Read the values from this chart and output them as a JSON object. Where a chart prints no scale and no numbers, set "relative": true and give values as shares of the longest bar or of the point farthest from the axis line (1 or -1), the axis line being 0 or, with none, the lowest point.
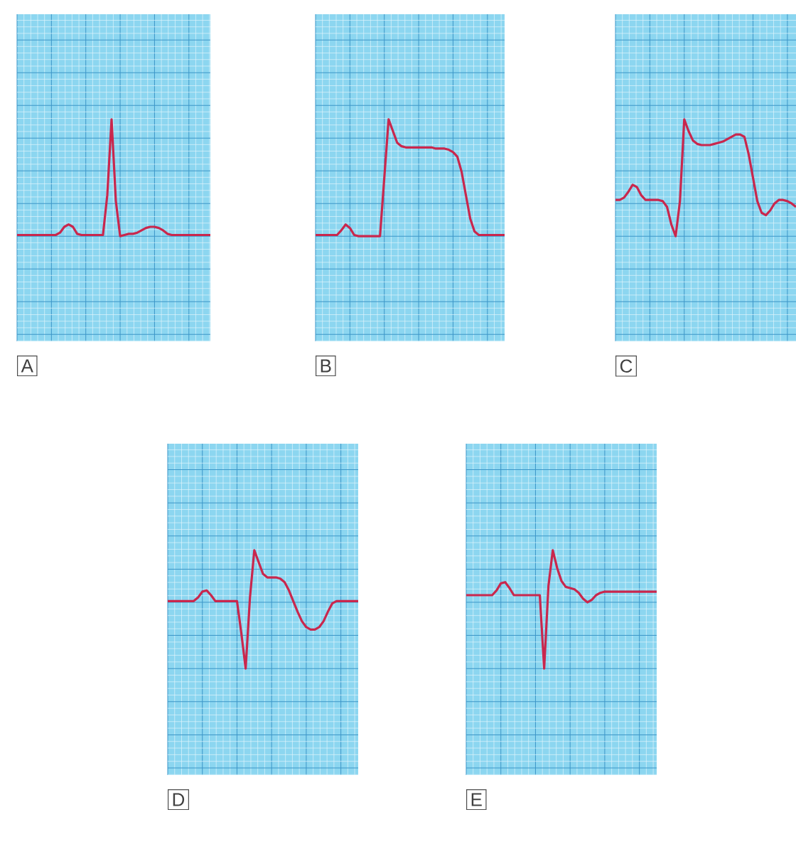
{
  "chart_data": [
    {
      "type": "line",
      "title": "A",
      "relative": true,
      "grid": true,
      "tick_labels": false,
      "color": "#c9274d",
      "categories": [
        null,
        null,
        null,
        null,
        null,
        null,
        null,
        null,
        null,
        null,
        null,
        null,
        null,
        null,
        null,
        null,
        null,
        null,
        null,
        null,
        null,
        null,
        null,
        null,
        null,
        null,
        null,
        null,
        null,
        null,
        null,
        null,
        null,
        null,
        null,
        null,
        null,
        null,
        null,
        null,
        null,
        null,
        null,
        null,
        null,
        null
      ],
      "values": [
        0.01,
        0.01,
        0.01,
        0.01,
        0.01,
        0.01,
        0.01,
        0.01,
        0.01,
        0.01,
        0.03,
        0.08,
        0.1,
        0.08,
        0.02,
        0.01,
        0.01,
        0.01,
        0.01,
        0.01,
        0.01,
        0.35,
        1,
        0.3,
        0,
        0.01,
        0.02,
        0.02,
        0.03,
        0.05,
        0.07,
        0.08,
        0.08,
        0.07,
        0.05,
        0.02,
        0.01,
        0.01,
        0.01,
        0.01,
        0.01,
        0.01,
        0.01,
        0.01,
        0.01,
        0.01
      ]
    },
    {
      "type": "line",
      "title": "B",
      "relative": true,
      "grid": true,
      "tick_labels": false,
      "color": "#c9274d",
      "categories": [
        null,
        null,
        null,
        null,
        null,
        null,
        null,
        null,
        null,
        null,
        null,
        null,
        null,
        null,
        null,
        null,
        null,
        null,
        null,
        null,
        null,
        null,
        null,
        null,
        null,
        null,
        null,
        null,
        null,
        null,
        null,
        null,
        null,
        null,
        null,
        null,
        null,
        null,
        null,
        null,
        null,
        null,
        null,
        null,
        null
      ],
      "values": [
        0.01,
        0.01,
        0.01,
        0.01,
        0.01,
        0.01,
        0.05,
        0.1,
        0.07,
        0.01,
        0,
        0,
        0,
        0,
        0,
        0,
        0.5,
        1,
        0.9,
        0.8,
        0.77,
        0.76,
        0.76,
        0.76,
        0.76,
        0.76,
        0.76,
        0.76,
        0.75,
        0.75,
        0.75,
        0.74,
        0.72,
        0.68,
        0.55,
        0.35,
        0.15,
        0.04,
        0.01,
        0.01,
        0.01,
        0.01,
        0.01,
        0.01,
        0.01
      ]
    },
    {
      "type": "line",
      "title": "C",
      "relative": true,
      "grid": true,
      "tick_labels": false,
      "color": "#c9274d",
      "categories": [
        null,
        null,
        null,
        null,
        null,
        null,
        null,
        null,
        null,
        null,
        null,
        null,
        null,
        null,
        null,
        null,
        null,
        null,
        null,
        null,
        null,
        null,
        null,
        null,
        null,
        null,
        null,
        null,
        null,
        null,
        null,
        null,
        null,
        null,
        null,
        null,
        null,
        null,
        null,
        null,
        null,
        null,
        null
      ],
      "values": [
        0.31,
        0.31,
        0.33,
        0.38,
        0.44,
        0.42,
        0.35,
        0.31,
        0.31,
        0.31,
        0.31,
        0.3,
        0.25,
        0.1,
        0,
        0.3,
        1,
        0.9,
        0.82,
        0.79,
        0.78,
        0.78,
        0.78,
        0.79,
        0.8,
        0.81,
        0.83,
        0.85,
        0.87,
        0.87,
        0.85,
        0.7,
        0.5,
        0.3,
        0.2,
        0.18,
        0.22,
        0.28,
        0.31,
        0.31,
        0.3,
        0.28,
        0.25
      ]
    },
    {
      "type": "line",
      "title": "D",
      "relative": true,
      "grid": true,
      "tick_labels": false,
      "color": "#c9274d",
      "categories": [
        null,
        null,
        null,
        null,
        null,
        null,
        null,
        null,
        null,
        null,
        null,
        null,
        null,
        null,
        null,
        null,
        null,
        null,
        null,
        null,
        null,
        null,
        null,
        null,
        null,
        null,
        null,
        null,
        null,
        null,
        null,
        null,
        null,
        null,
        null,
        null,
        null,
        null,
        null,
        null,
        null,
        null,
        null,
        null,
        null
      ],
      "values": [
        0.57,
        0.57,
        0.57,
        0.57,
        0.57,
        0.57,
        0.57,
        0.6,
        0.65,
        0.66,
        0.62,
        0.57,
        0.57,
        0.57,
        0.57,
        0.57,
        0.57,
        0.3,
        0,
        0.6,
        1,
        0.9,
        0.8,
        0.77,
        0.77,
        0.77,
        0.76,
        0.73,
        0.66,
        0.57,
        0.48,
        0.4,
        0.35,
        0.33,
        0.33,
        0.35,
        0.4,
        0.48,
        0.55,
        0.57,
        0.57,
        0.57,
        0.57,
        0.57,
        0.57
      ]
    },
    {
      "type": "line",
      "title": "E",
      "relative": true,
      "grid": true,
      "tick_labels": false,
      "color": "#c9274d",
      "categories": [
        null,
        null,
        null,
        null,
        null,
        null,
        null,
        null,
        null,
        null,
        null,
        null,
        null,
        null,
        null,
        null,
        null,
        null,
        null,
        null,
        null,
        null,
        null,
        null,
        null,
        null,
        null,
        null,
        null,
        null,
        null,
        null,
        null,
        null,
        null,
        null,
        null,
        null,
        null,
        null,
        null,
        null,
        null,
        null,
        null
      ],
      "values": [
        0.62,
        0.62,
        0.62,
        0.62,
        0.62,
        0.62,
        0.62,
        0.66,
        0.72,
        0.73,
        0.68,
        0.62,
        0.62,
        0.62,
        0.62,
        0.62,
        0.62,
        0.62,
        0,
        0.7,
        1,
        0.85,
        0.74,
        0.69,
        0.68,
        0.67,
        0.64,
        0.59,
        0.56,
        0.58,
        0.62,
        0.64,
        0.65,
        0.65,
        0.65,
        0.65,
        0.65,
        0.65,
        0.65,
        0.65,
        0.65,
        0.65,
        0.65,
        0.65,
        0.65
      ]
    }
  ]
}
